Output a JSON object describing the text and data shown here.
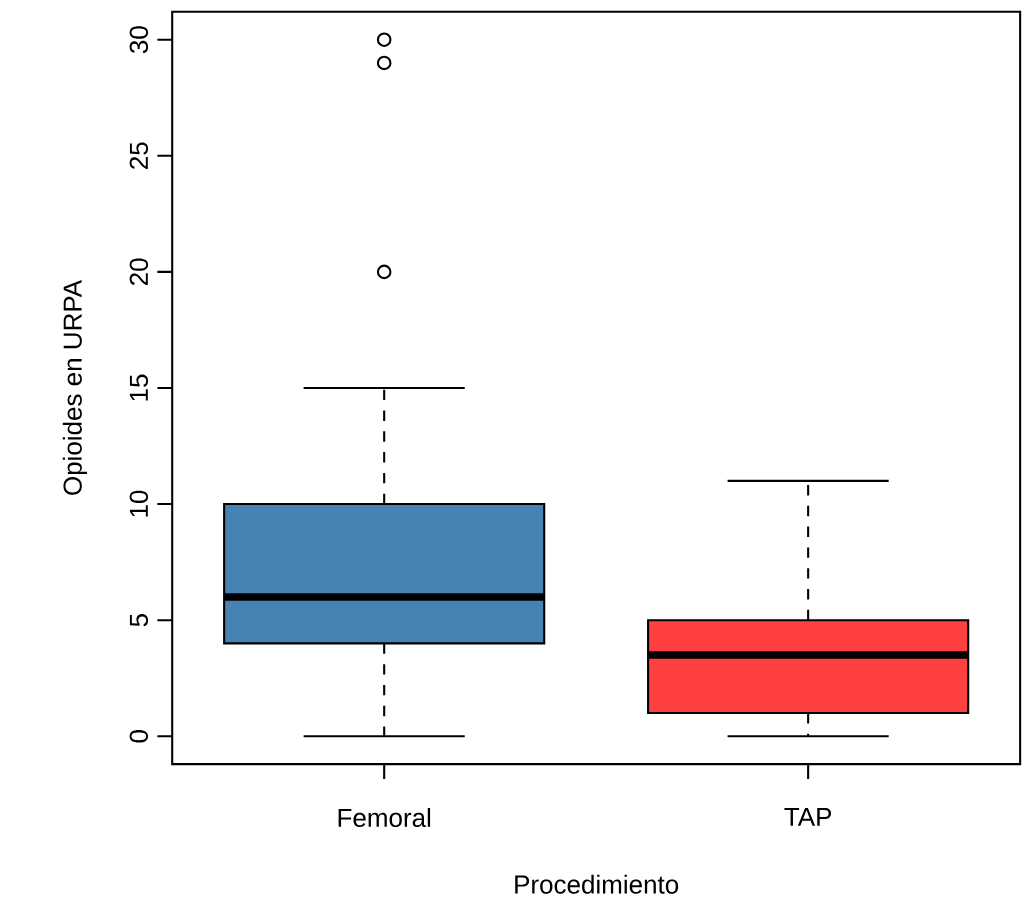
{
  "chart_data": {
    "type": "box",
    "xlabel": "Procedimiento",
    "ylabel": "Opioides en URPA",
    "categories": [
      "Femoral",
      "TAP"
    ],
    "boxes": [
      {
        "low": 0,
        "q1": 4,
        "median": 6,
        "q3": 10,
        "high": 15,
        "outliers": [
          20,
          29,
          30
        ]
      },
      {
        "low": 0,
        "q1": 1,
        "median": 3.5,
        "q3": 5,
        "high": 11
      }
    ],
    "colors": [
      "#4682b4",
      "#ff4040"
    ],
    "ylim": [
      -1.2,
      31.2
    ],
    "yticks": [
      0,
      5,
      10,
      15,
      20,
      25,
      30
    ]
  }
}
